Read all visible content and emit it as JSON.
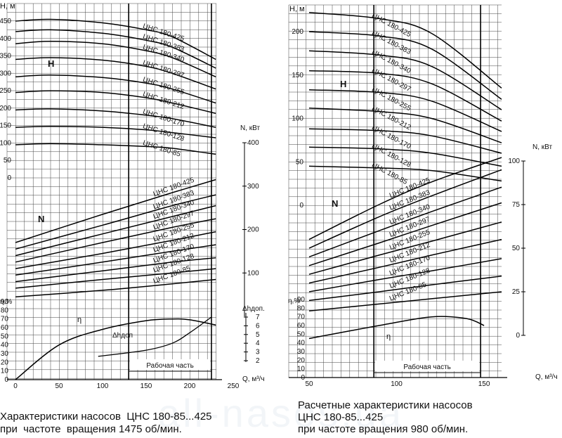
{
  "left": {
    "H": {
      "axis_label": "H, м",
      "ticks": [
        0,
        50,
        100,
        150,
        200,
        250,
        300,
        350,
        400,
        450
      ],
      "curves": [
        {
          "label": "ЦНС 180-425",
          "pts": [
            [
              0,
              450
            ],
            [
              40,
              455
            ],
            [
              100,
              445
            ],
            [
              150,
              425
            ],
            [
              180,
              405
            ],
            [
              230,
              340
            ]
          ]
        },
        {
          "label": "ЦНС 180-383",
          "pts": [
            [
              0,
              420
            ],
            [
              40,
              425
            ],
            [
              100,
              415
            ],
            [
              150,
              395
            ],
            [
              180,
              375
            ],
            [
              230,
              315
            ]
          ]
        },
        {
          "label": "ЦНС 180-340",
          "pts": [
            [
              0,
              385
            ],
            [
              40,
              392
            ],
            [
              100,
              385
            ],
            [
              150,
              365
            ],
            [
              180,
              345
            ],
            [
              230,
              290
            ]
          ]
        },
        {
          "label": "ЦНС 180-297",
          "pts": [
            [
              0,
              340
            ],
            [
              40,
              345
            ],
            [
              100,
              338
            ],
            [
              150,
              320
            ],
            [
              180,
              300
            ],
            [
              230,
              255
            ]
          ]
        },
        {
          "label": "ЦНС 180-255",
          "pts": [
            [
              0,
              290
            ],
            [
              40,
              295
            ],
            [
              100,
              288
            ],
            [
              150,
              272
            ],
            [
              180,
              255
            ],
            [
              230,
              215
            ]
          ]
        },
        {
          "label": "ЦНС 180-212",
          "pts": [
            [
              0,
              245
            ],
            [
              40,
              250
            ],
            [
              100,
              245
            ],
            [
              150,
              230
            ],
            [
              180,
              215
            ],
            [
              230,
              185
            ]
          ]
        },
        {
          "label": "ЦНС 180-170",
          "pts": [
            [
              0,
              195
            ],
            [
              40,
              198
            ],
            [
              100,
              192
            ],
            [
              150,
              180
            ],
            [
              180,
              170
            ],
            [
              230,
              145
            ]
          ]
        },
        {
          "label": "ЦНС 180-128",
          "pts": [
            [
              0,
              145
            ],
            [
              40,
              148
            ],
            [
              100,
              145
            ],
            [
              150,
              138
            ],
            [
              180,
              130
            ],
            [
              230,
              115
            ]
          ]
        },
        {
          "label": "ЦНС 180-85",
          "pts": [
            [
              0,
              95
            ],
            [
              40,
              98
            ],
            [
              100,
              95
            ],
            [
              150,
              90
            ],
            [
              180,
              85
            ],
            [
              230,
              68
            ]
          ]
        }
      ]
    },
    "N": {
      "axis_label": "N, кВт",
      "ticks": [
        100,
        200,
        300,
        400
      ],
      "curves": [
        {
          "label": "ЦНС 180-425",
          "pts": [
            [
              0,
              170
            ],
            [
              100,
              235
            ],
            [
              180,
              285
            ],
            [
              230,
              315
            ]
          ]
        },
        {
          "label": "ЦНС 180-383",
          "pts": [
            [
              0,
              155
            ],
            [
              100,
              210
            ],
            [
              180,
              255
            ],
            [
              230,
              280
            ]
          ]
        },
        {
          "label": "ЦНС 180-340",
          "pts": [
            [
              0,
              140
            ],
            [
              100,
              190
            ],
            [
              180,
              230
            ],
            [
              230,
              255
            ]
          ]
        },
        {
          "label": "ЦНС 180-297",
          "pts": [
            [
              0,
              125
            ],
            [
              100,
              170
            ],
            [
              180,
              205
            ],
            [
              230,
              225
            ]
          ]
        },
        {
          "label": "ЦНС 180-255",
          "pts": [
            [
              0,
              110
            ],
            [
              100,
              145
            ],
            [
              180,
              175
            ],
            [
              230,
              195
            ]
          ]
        },
        {
          "label": "ЦНС 180-212",
          "pts": [
            [
              0,
              95
            ],
            [
              100,
              125
            ],
            [
              180,
              150
            ],
            [
              230,
              165
            ]
          ]
        },
        {
          "label": "ЦНС 180-170",
          "pts": [
            [
              0,
              80
            ],
            [
              100,
              105
            ],
            [
              180,
              125
            ],
            [
              230,
              135
            ]
          ]
        },
        {
          "label": "ЦНС 180-128",
          "pts": [
            [
              0,
              65
            ],
            [
              100,
              85
            ],
            [
              180,
              100
            ],
            [
              230,
              110
            ]
          ]
        },
        {
          "label": "ЦНС 180-85",
          "pts": [
            [
              0,
              45
            ],
            [
              100,
              60
            ],
            [
              180,
              75
            ],
            [
              230,
              85
            ]
          ]
        }
      ]
    },
    "eta": {
      "axis_label": "η,%",
      "ticks": [
        0,
        10,
        20,
        30,
        40,
        50,
        60,
        70,
        80,
        90
      ],
      "label": "η",
      "pts": [
        [
          0,
          0
        ],
        [
          50,
          40
        ],
        [
          100,
          58
        ],
        [
          150,
          68
        ],
        [
          180,
          70
        ],
        [
          200,
          69
        ],
        [
          230,
          63
        ]
      ]
    },
    "dh": {
      "axis_label": "Δhдоп.",
      "curve_label": "Δhдоп",
      "ticks": [
        2,
        3,
        4,
        5,
        6,
        7
      ],
      "pts": [
        [
          95,
          2.5
        ],
        [
          150,
          3.2
        ],
        [
          180,
          4
        ],
        [
          200,
          5.2
        ],
        [
          225,
          7
        ]
      ]
    },
    "Q": {
      "axis_label": "Q, м³/ч",
      "ticks": [
        0,
        50,
        100,
        150,
        200,
        250
      ],
      "work_label": "Рабочая часть",
      "work": [
        130,
        225
      ]
    },
    "H_label": "H",
    "N_label": "N",
    "caption": [
      "Характеристики насосов  ЦНС 180-85...425",
      "при  частоте  вращения 1475 об/мин."
    ]
  },
  "right": {
    "H": {
      "axis_label": "H, м",
      "ticks": [
        0,
        50,
        100,
        150,
        200
      ],
      "curves": [
        {
          "label": "ЦНС 180-425",
          "pts": [
            [
              50,
              222
            ],
            [
              90,
              215
            ],
            [
              120,
              198
            ],
            [
              160,
              135
            ]
          ]
        },
        {
          "label": "ЦНС 180-383",
          "pts": [
            [
              50,
              200
            ],
            [
              90,
              195
            ],
            [
              120,
              180
            ],
            [
              160,
              122
            ]
          ]
        },
        {
          "label": "ЦНС 180-340",
          "pts": [
            [
              50,
              178
            ],
            [
              90,
              173
            ],
            [
              120,
              160
            ],
            [
              160,
              110
            ]
          ]
        },
        {
          "label": "ЦНС 180-297",
          "pts": [
            [
              50,
              155
            ],
            [
              90,
              152
            ],
            [
              120,
              140
            ],
            [
              160,
              97
            ]
          ]
        },
        {
          "label": "ЦНС 180-255",
          "pts": [
            [
              50,
              133
            ],
            [
              90,
              130
            ],
            [
              120,
              120
            ],
            [
              160,
              85
            ]
          ]
        },
        {
          "label": "ЦНС 180-212",
          "pts": [
            [
              50,
              112
            ],
            [
              90,
              108
            ],
            [
              120,
              100
            ],
            [
              160,
              72
            ]
          ]
        },
        {
          "label": "ЦНС 180-170",
          "pts": [
            [
              50,
              88
            ],
            [
              90,
              86
            ],
            [
              120,
              80
            ],
            [
              160,
              60
            ]
          ]
        },
        {
          "label": "ЦНС 180-128",
          "pts": [
            [
              50,
              67
            ],
            [
              90,
              65
            ],
            [
              120,
              60
            ],
            [
              160,
              45
            ]
          ]
        },
        {
          "label": "ЦНС 180-85",
          "pts": [
            [
              50,
              45
            ],
            [
              90,
              43
            ],
            [
              120,
              40
            ],
            [
              160,
              28
            ]
          ]
        }
      ]
    },
    "N": {
      "axis_label": "N, кВт",
      "ticks": [
        0,
        25,
        50,
        75,
        100
      ],
      "curves": [
        {
          "label": "ЦНС 180-425",
          "pts": [
            [
              50,
              55
            ],
            [
              90,
              75
            ],
            [
              120,
              88
            ],
            [
              160,
              102
            ]
          ]
        },
        {
          "label": "ЦНС 180-383",
          "pts": [
            [
              50,
              50
            ],
            [
              90,
              68
            ],
            [
              120,
              80
            ],
            [
              160,
              95
            ]
          ]
        },
        {
          "label": "ЦНС 180-340",
          "pts": [
            [
              50,
              45
            ],
            [
              90,
              60
            ],
            [
              120,
              71
            ],
            [
              160,
              85
            ]
          ]
        },
        {
          "label": "ЦНС 180-297",
          "pts": [
            [
              50,
              40
            ],
            [
              90,
              53
            ],
            [
              120,
              63
            ],
            [
              160,
              76
            ]
          ]
        },
        {
          "label": "ЦНС 180-255",
          "pts": [
            [
              50,
              35
            ],
            [
              90,
              46
            ],
            [
              120,
              54
            ],
            [
              160,
              65
            ]
          ]
        },
        {
          "label": "ЦНС 180-212",
          "pts": [
            [
              50,
              30
            ],
            [
              90,
              39
            ],
            [
              120,
              46
            ],
            [
              160,
              55
            ]
          ]
        },
        {
          "label": "ЦНС 180-170",
          "pts": [
            [
              50,
              25
            ],
            [
              90,
              32
            ],
            [
              120,
              37
            ],
            [
              160,
              44
            ]
          ]
        },
        {
          "label": "ЦНС 180-128",
          "pts": [
            [
              50,
              20
            ],
            [
              90,
              25
            ],
            [
              120,
              29
            ],
            [
              160,
              34
            ]
          ]
        },
        {
          "label": "ЦНС 180-85",
          "pts": [
            [
              50,
              14
            ],
            [
              90,
              18
            ],
            [
              120,
              21
            ],
            [
              160,
              25
            ]
          ]
        }
      ]
    },
    "eta": {
      "axis_label": "η,%",
      "ticks": [
        0,
        10,
        20,
        30,
        40,
        50,
        60,
        70,
        80,
        90
      ],
      "label": "η",
      "pts": [
        [
          50,
          45
        ],
        [
          90,
          60
        ],
        [
          120,
          70
        ],
        [
          140,
          68
        ],
        [
          150,
          60
        ]
      ]
    },
    "Q": {
      "axis_label": "Q, м³/ч",
      "ticks": [
        50,
        100,
        150
      ],
      "work_label": "Рабочая часть",
      "work": [
        87,
        148
      ]
    },
    "H_label": "H",
    "N_label": "N",
    "caption": [
      "Расчетные характеристики насосов",
      "ЦНС 180-85...425",
      "при частоте вращения 980 об/мин."
    ]
  },
  "chart_data": [
    {
      "type": "line",
      "title": "Характеристики насосов ЦНС 180-85...425 при частоте вращения 1475 об/мин.",
      "xlabel": "Q, м³/ч",
      "xlim": [
        0,
        250
      ],
      "ylabels": [
        "H, м",
        "N, кВт",
        "η,%",
        "Δhдоп."
      ]
    },
    {
      "type": "line",
      "title": "Расчетные характеристики насосов ЦНС 180-85...425 при частоте вращения 980 об/мин.",
      "xlabel": "Q, м³/ч",
      "xlim": [
        50,
        160
      ],
      "ylabels": [
        "H, м",
        "N, кВт",
        "η,%"
      ]
    }
  ],
  "watermark": "all-nasos.ua"
}
